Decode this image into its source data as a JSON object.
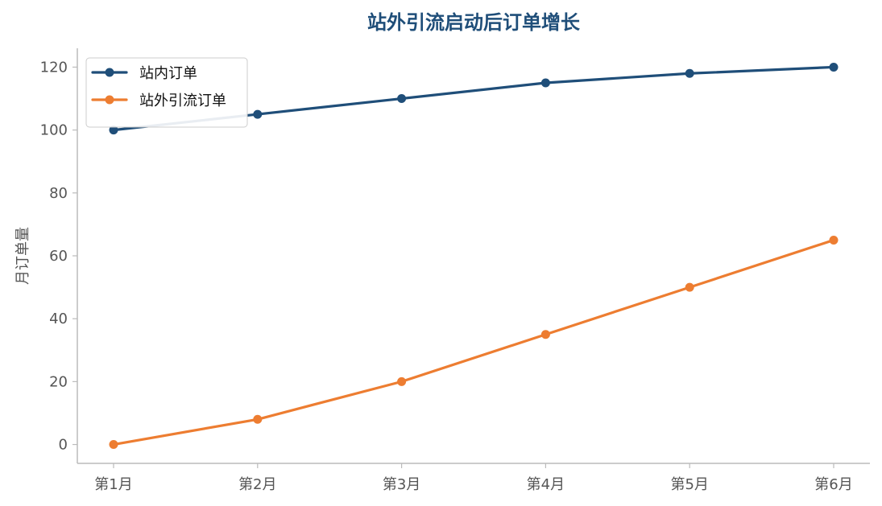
{
  "chart_data": {
    "type": "line",
    "title": "站外引流启动后订单增长",
    "xlabel": "",
    "ylabel": "月订单量",
    "categories": [
      "第1月",
      "第2月",
      "第3月",
      "第4月",
      "第5月",
      "第6月"
    ],
    "series": [
      {
        "name": "站内订单",
        "values": [
          100,
          105,
          110,
          115,
          118,
          120
        ],
        "color": "#1f4e79"
      },
      {
        "name": "站外引流订单",
        "values": [
          0,
          8,
          20,
          35,
          50,
          65
        ],
        "color": "#ed7d31"
      }
    ],
    "ylim": [
      -6,
      126
    ],
    "yticks": [
      0,
      20,
      40,
      60,
      80,
      100,
      120
    ],
    "grid": false,
    "legend_position": "top-left",
    "colors": {
      "title": "#1f4e79",
      "axis": "#bbbbbb",
      "tick_text": "#555555"
    }
  }
}
